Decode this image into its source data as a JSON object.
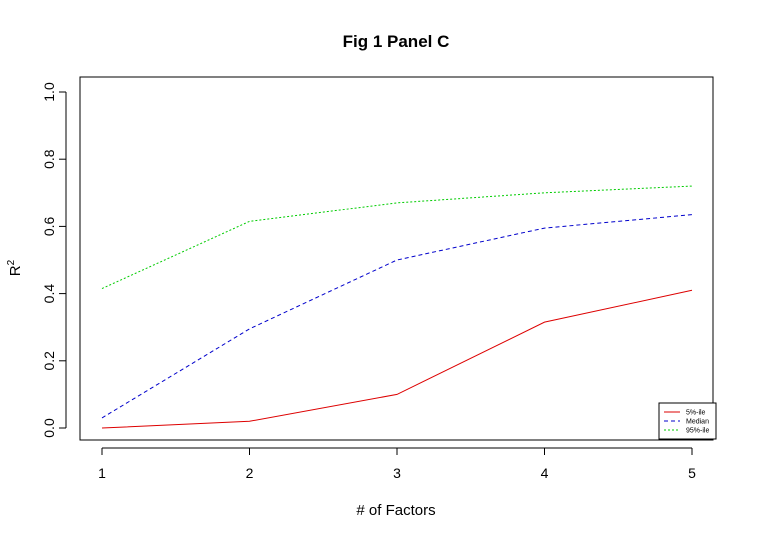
{
  "chart_data": {
    "type": "line",
    "title": "Fig 1 Panel C",
    "xlabel": "# of Factors",
    "ylabel": "R",
    "ylabel_superscript": "2",
    "x": [
      1,
      2,
      3,
      4,
      5
    ],
    "xlim": [
      1,
      5
    ],
    "ylim": [
      0,
      1
    ],
    "x_ticks": [
      1,
      2,
      3,
      4,
      5
    ],
    "y_ticks": [
      0.0,
      0.2,
      0.4,
      0.6,
      0.8,
      1.0
    ],
    "x_tick_labels": [
      "1",
      "2",
      "3",
      "4",
      "5"
    ],
    "y_tick_labels": [
      "0.0",
      "0.2",
      "0.4",
      "0.6",
      "0.8",
      "1.0"
    ],
    "grid": false,
    "legend_position": "bottom-right",
    "series": [
      {
        "name": "5%-ile",
        "color": "#dd0000",
        "dash": "solid",
        "values": [
          0.0,
          0.02,
          0.1,
          0.315,
          0.41
        ]
      },
      {
        "name": "Median",
        "color": "#0000cc",
        "dash": "dashed",
        "values": [
          0.03,
          0.295,
          0.5,
          0.595,
          0.635
        ]
      },
      {
        "name": "95%-ile",
        "color": "#00cc00",
        "dash": "dotted",
        "values": [
          0.415,
          0.615,
          0.67,
          0.7,
          0.72
        ]
      }
    ]
  }
}
